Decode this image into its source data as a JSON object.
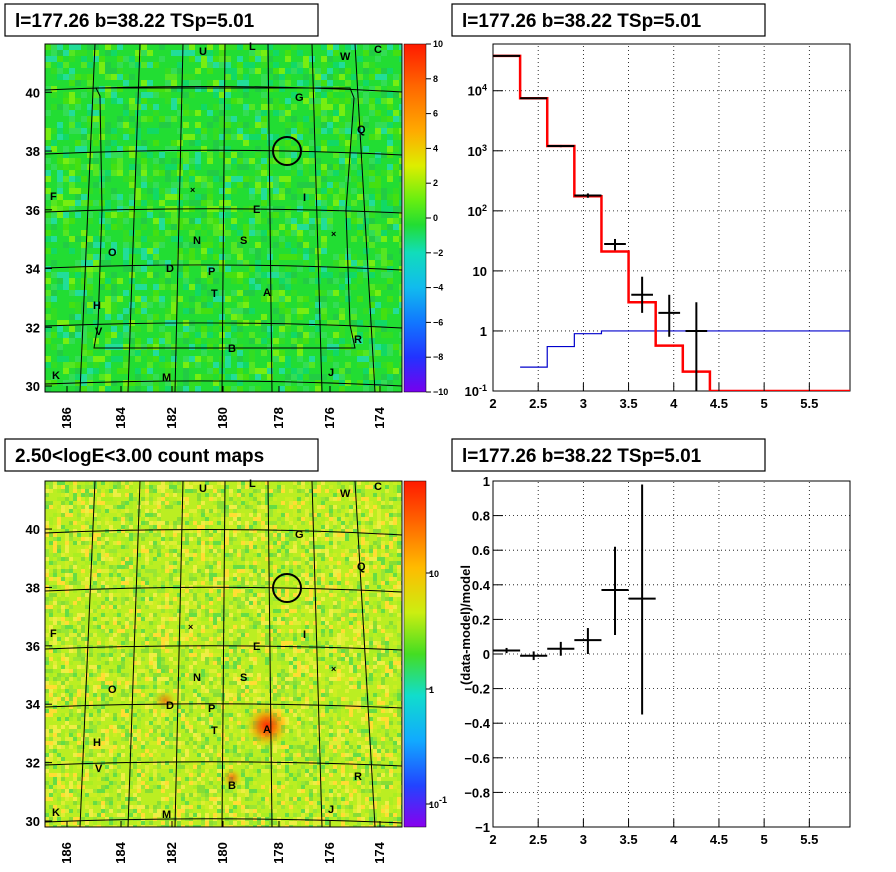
{
  "panels": {
    "top_left_title": "l=177.26 b=38.22 TSp=5.01",
    "top_right_title": "l=177.26 b=38.22 TSp=5.01",
    "bottom_left_title": "2.50<logE<3.00 count maps",
    "bottom_right_title": "l=177.26 b=38.22 TSp=5.01"
  },
  "colors": {
    "model": "#ff0000",
    "data": "#000000",
    "background_model": "#0000cc",
    "map_base": "#22dd33",
    "count_base": "#bbee22"
  },
  "chart_data": [
    {
      "type": "heatmap",
      "name": "TS residual map",
      "x_ticks": [
        "186",
        "184",
        "182",
        "180",
        "178",
        "176",
        "174"
      ],
      "y_ticks": [
        "30",
        "32",
        "34",
        "36",
        "38",
        "40"
      ],
      "colorbar_ticks": [
        "10",
        "8",
        "6",
        "4",
        "2",
        "0",
        "−2",
        "−4",
        "−6",
        "−8",
        "−10"
      ],
      "zlim": [
        -10,
        10
      ],
      "source_labels": [
        "U",
        "L",
        "W",
        "C",
        "G",
        "Q",
        "F",
        "I",
        "E",
        "N",
        "S",
        "O",
        "D",
        "P",
        "T",
        "A",
        "H",
        "V",
        "B",
        "R",
        "K",
        "M",
        "J"
      ]
    },
    {
      "type": "line",
      "name": "counts spectrum",
      "log_y": true,
      "x_ticks": [
        "2",
        "2.5",
        "3",
        "3.5",
        "4",
        "4.5",
        "5",
        "5.5"
      ],
      "y_ticks": [
        "10^-1",
        "1",
        "10",
        "10^2",
        "10^3",
        "10^4"
      ],
      "xlim": [
        2,
        5.95
      ],
      "ylim": [
        0.1,
        60000
      ],
      "model_steps": {
        "edges": [
          2.0,
          2.3,
          2.6,
          2.9,
          3.2,
          3.5,
          3.8,
          4.1,
          4.4,
          5.95
        ],
        "values": [
          38000,
          7500,
          1200,
          175,
          21,
          3,
          0.57,
          0.21,
          0.1
        ]
      },
      "background_steps": {
        "edges": [
          2.3,
          2.6,
          2.9,
          3.2,
          3.5,
          5.95
        ],
        "values": [
          0.25,
          0.55,
          0.9,
          1.0,
          1.0
        ]
      },
      "data_points": [
        {
          "x": 2.15,
          "y": 38000,
          "xerr": 0.15,
          "ylo": 37500,
          "yhi": 38500
        },
        {
          "x": 2.45,
          "y": 7500,
          "xerr": 0.15,
          "ylo": 7400,
          "yhi": 7600
        },
        {
          "x": 2.75,
          "y": 1200,
          "xerr": 0.15,
          "ylo": 1150,
          "yhi": 1250
        },
        {
          "x": 3.05,
          "y": 180,
          "xerr": 0.15,
          "ylo": 165,
          "yhi": 195
        },
        {
          "x": 3.35,
          "y": 28,
          "xerr": 0.12,
          "ylo": 22,
          "yhi": 34
        },
        {
          "x": 3.65,
          "y": 4,
          "xerr": 0.12,
          "ylo": 2,
          "yhi": 8
        },
        {
          "x": 3.95,
          "y": 2,
          "xerr": 0.12,
          "ylo": 0.8,
          "yhi": 4
        },
        {
          "x": 4.25,
          "y": 1,
          "xerr": 0.12,
          "ylo": 0.1,
          "yhi": 3
        }
      ]
    },
    {
      "type": "heatmap",
      "name": "count map",
      "log_z": true,
      "x_ticks": [
        "186",
        "184",
        "182",
        "180",
        "178",
        "176",
        "174"
      ],
      "y_ticks": [
        "30",
        "32",
        "34",
        "36",
        "38",
        "40"
      ],
      "colorbar_ticks": [
        "10",
        "1",
        "10^-1"
      ],
      "source_labels": [
        "U",
        "L",
        "W",
        "C",
        "G",
        "Q",
        "F",
        "I",
        "E",
        "N",
        "S",
        "O",
        "D",
        "P",
        "T",
        "A",
        "H",
        "V",
        "B",
        "R",
        "K",
        "M",
        "J"
      ]
    },
    {
      "type": "scatter",
      "name": "residuals",
      "ylabel": "(data-model)/model",
      "x_ticks": [
        "2",
        "2.5",
        "3",
        "3.5",
        "4",
        "4.5",
        "5",
        "5.5"
      ],
      "y_ticks": [
        "1",
        "0.8",
        "0.6",
        "0.4",
        "0.2",
        "0",
        "−0.2",
        "−0.4",
        "−0.6",
        "−0.8",
        "−1"
      ],
      "xlim": [
        2,
        5.95
      ],
      "ylim": [
        -1,
        1
      ],
      "points": [
        {
          "x": 2.15,
          "y": 0.02,
          "xerr": 0.15,
          "ylo": 0.005,
          "yhi": 0.035
        },
        {
          "x": 2.45,
          "y": -0.01,
          "xerr": 0.15,
          "ylo": -0.035,
          "yhi": 0.015
        },
        {
          "x": 2.75,
          "y": 0.03,
          "xerr": 0.15,
          "ylo": -0.01,
          "yhi": 0.07
        },
        {
          "x": 3.05,
          "y": 0.08,
          "xerr": 0.15,
          "ylo": 0.0,
          "yhi": 0.15
        },
        {
          "x": 3.35,
          "y": 0.37,
          "xerr": 0.15,
          "ylo": 0.11,
          "yhi": 0.62
        },
        {
          "x": 3.65,
          "y": 0.32,
          "xerr": 0.15,
          "ylo": -0.35,
          "yhi": 0.98
        }
      ]
    }
  ]
}
